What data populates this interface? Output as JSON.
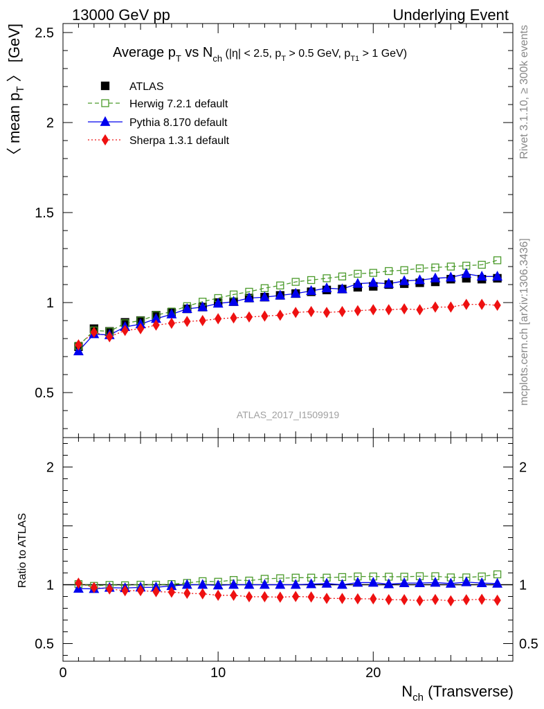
{
  "header": {
    "left": "13000 GeV pp",
    "right": "Underlying Event"
  },
  "side_labels": {
    "rivet": "Rivet 3.1.10, ≥ 300k events",
    "mcplots": "mcplots.cern.ch [arXiv:1306.3436]"
  },
  "watermark": "ATLAS_2017_I1509919",
  "title": {
    "t1": "Average p",
    "t1_sub": "T",
    "t2": " vs N",
    "t2_sub": "ch",
    "t3": " (|η| < 2.5, p",
    "t3_sub": "T",
    "t4": " > 0.5 GeV, p",
    "t4_sub": "T1",
    "t5": " > 1 GeV)"
  },
  "ylabel_main": {
    "pre": "〈 mean p",
    "sub": "T",
    "post": " 〉 [GeV]"
  },
  "ylabel_ratio": "Ratio to ATLAS",
  "xlabel": {
    "pre": "N",
    "sub": "ch",
    "post": " (Transverse)"
  },
  "colors": {
    "atlas": "#000000",
    "herwig": "#4a9a2a",
    "pythia": "#0000ee",
    "sherpa": "#ee1111"
  },
  "chart_data": [
    {
      "type": "scatter",
      "xlim": [
        0,
        29
      ],
      "ylim": [
        0.25,
        2.55
      ],
      "yticks": [
        0.5,
        1,
        1.5,
        2,
        2.5
      ],
      "ytick_labels": [
        "0.5",
        "1",
        "1.5",
        "2",
        "2.5"
      ],
      "legend_position": "top-left",
      "x": [
        1,
        2,
        3,
        4,
        5,
        6,
        7,
        8,
        9,
        10,
        11,
        12,
        13,
        14,
        15,
        16,
        17,
        18,
        19,
        20,
        21,
        22,
        23,
        24,
        25,
        26,
        27,
        28
      ],
      "series": [
        {
          "name": "ATLAS",
          "style": "square-filled",
          "values": [
            0.755,
            0.855,
            0.84,
            0.89,
            0.9,
            0.93,
            0.945,
            0.965,
            0.975,
            1.0,
            1.005,
            1.025,
            1.03,
            1.04,
            1.05,
            1.06,
            1.07,
            1.075,
            1.085,
            1.09,
            1.1,
            1.105,
            1.11,
            1.115,
            1.13,
            1.135,
            1.13,
            1.135
          ]
        },
        {
          "name": "Herwig 7.2.1 default",
          "style": "square-open-dashed",
          "values": [
            0.76,
            0.845,
            0.84,
            0.885,
            0.9,
            0.93,
            0.95,
            0.98,
            1.005,
            1.025,
            1.045,
            1.06,
            1.08,
            1.095,
            1.115,
            1.125,
            1.135,
            1.145,
            1.16,
            1.165,
            1.175,
            1.18,
            1.19,
            1.195,
            1.2,
            1.205,
            1.21,
            1.235
          ]
        },
        {
          "name": "Pythia 8.170 default",
          "style": "triangle-solid",
          "values": [
            0.73,
            0.825,
            0.82,
            0.865,
            0.88,
            0.91,
            0.935,
            0.965,
            0.975,
            0.995,
            1.005,
            1.025,
            1.03,
            1.04,
            1.05,
            1.065,
            1.08,
            1.075,
            1.105,
            1.11,
            1.105,
            1.12,
            1.125,
            1.135,
            1.14,
            1.16,
            1.145,
            1.145
          ]
        },
        {
          "name": "Sherpa 1.3.1 default",
          "style": "diamond-dotted",
          "values": [
            0.765,
            0.835,
            0.81,
            0.845,
            0.855,
            0.875,
            0.885,
            0.895,
            0.9,
            0.91,
            0.915,
            0.92,
            0.925,
            0.93,
            0.945,
            0.95,
            0.945,
            0.95,
            0.955,
            0.96,
            0.96,
            0.965,
            0.96,
            0.975,
            0.975,
            0.99,
            0.99,
            0.985
          ]
        }
      ]
    },
    {
      "type": "scatter",
      "ylabel": "Ratio to ATLAS",
      "xlim": [
        0,
        29
      ],
      "ylim": [
        0.35,
        2.25
      ],
      "yticks": [
        0.5,
        1,
        2
      ],
      "ytick_labels": [
        "0.5",
        "1",
        "2"
      ],
      "xticks": [
        0,
        10,
        20
      ],
      "xtick_labels": [
        "0",
        "10",
        "20"
      ],
      "reference_line": 1,
      "x": [
        1,
        2,
        3,
        4,
        5,
        6,
        7,
        8,
        9,
        10,
        11,
        12,
        13,
        14,
        15,
        16,
        17,
        18,
        19,
        20,
        21,
        22,
        23,
        24,
        25,
        26,
        27,
        28
      ],
      "series": [
        {
          "name": "Herwig 7.2.1 default",
          "values": [
            1.005,
            0.99,
            0.998,
            0.995,
            1.0,
            1.0,
            1.005,
            1.015,
            1.03,
            1.025,
            1.04,
            1.035,
            1.05,
            1.055,
            1.06,
            1.06,
            1.06,
            1.065,
            1.07,
            1.07,
            1.068,
            1.068,
            1.072,
            1.072,
            1.062,
            1.062,
            1.07,
            1.088
          ]
        },
        {
          "name": "Pythia 8.170 default",
          "values": [
            0.967,
            0.965,
            0.975,
            0.972,
            0.977,
            0.978,
            0.99,
            1.0,
            1.0,
            0.995,
            1.0,
            1.0,
            1.0,
            1.0,
            1.0,
            1.005,
            1.01,
            1.0,
            1.018,
            1.018,
            1.005,
            1.014,
            1.014,
            1.018,
            1.01,
            1.022,
            1.014,
            1.01
          ]
        },
        {
          "name": "Sherpa 1.3.1 default",
          "values": [
            1.013,
            0.976,
            0.964,
            0.949,
            0.95,
            0.941,
            0.937,
            0.927,
            0.923,
            0.91,
            0.91,
            0.898,
            0.898,
            0.894,
            0.9,
            0.896,
            0.884,
            0.883,
            0.88,
            0.88,
            0.873,
            0.873,
            0.865,
            0.874,
            0.863,
            0.872,
            0.876,
            0.868
          ]
        }
      ]
    }
  ]
}
